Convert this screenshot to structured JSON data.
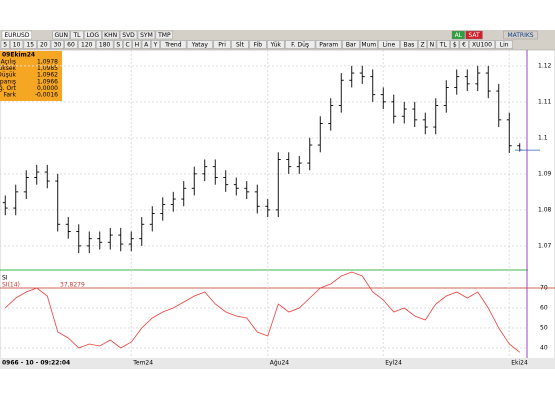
{
  "toolbar": {
    "symbol": "EURUSD",
    "row1": [
      "GUN",
      "TL",
      "LOG",
      "KHN",
      "SVD",
      "SYM",
      "TMP"
    ],
    "buy": "AL",
    "sell": "SAT",
    "brand": "MATRIKS",
    "row2": [
      "5",
      "10",
      "15",
      "20",
      "30",
      "60",
      "120",
      "180",
      "S",
      "C",
      "H",
      "A",
      "Y",
      "Trend",
      "Yatay",
      "Pri",
      "Slt",
      "Fib",
      "Yük",
      "F. Düş",
      "Param",
      "Bar",
      "Mum",
      "Line",
      "Bas",
      "Z",
      "N",
      "TL",
      "$",
      "€",
      "XU100",
      "Lin"
    ]
  },
  "info": {
    "date": "09Ekim24",
    "rows": [
      [
        "Açılış",
        "1,0978"
      ],
      [
        "Yüksek",
        "1,0985"
      ],
      [
        "Düşük",
        "1,0962"
      ],
      [
        "Kapanış",
        "1,0966"
      ],
      [
        "Ağ. Ort",
        "0,0000"
      ],
      [
        "Fark",
        "-0,0016"
      ]
    ]
  },
  "status": "0966 - 10 - 09:22:04",
  "chart_data": {
    "type": "ohlc",
    "ylim": [
      1.0633,
      1.1244
    ],
    "yticks": [
      1.12,
      1.11,
      1.1,
      1.09,
      1.08,
      1.07
    ],
    "grid": true,
    "color": "#000000",
    "categories": [
      null,
      null,
      null,
      null,
      null,
      null,
      null,
      null,
      null,
      null,
      null,
      null,
      "Tem24",
      null,
      null,
      null,
      null,
      null,
      null,
      null,
      null,
      null,
      null,
      null,
      null,
      "Ağu24",
      null,
      null,
      null,
      null,
      null,
      null,
      null,
      null,
      null,
      null,
      "Eyl24",
      null,
      null,
      null,
      null,
      null,
      null,
      null,
      null,
      null,
      null,
      null,
      "Eki24",
      null
    ],
    "ohlc": [
      [
        1.082,
        1.084,
        1.0785,
        1.0805
      ],
      [
        1.0805,
        1.087,
        1.0785,
        1.085
      ],
      [
        1.085,
        1.091,
        1.083,
        1.089
      ],
      [
        1.089,
        1.0925,
        1.087,
        1.0905
      ],
      [
        1.0905,
        1.0925,
        1.086,
        1.088
      ],
      [
        1.088,
        1.09,
        1.074,
        1.076
      ],
      [
        1.076,
        1.078,
        1.072,
        1.074
      ],
      [
        1.074,
        1.076,
        1.068,
        1.07
      ],
      [
        1.07,
        1.074,
        1.068,
        1.072
      ],
      [
        1.072,
        1.074,
        1.069,
        1.071
      ],
      [
        1.071,
        1.075,
        1.069,
        1.073
      ],
      [
        1.073,
        1.075,
        1.0685,
        1.0705
      ],
      [
        1.0705,
        1.074,
        1.0685,
        1.072
      ],
      [
        1.072,
        1.078,
        1.07,
        1.076
      ],
      [
        1.076,
        1.081,
        1.074,
        1.079
      ],
      [
        1.079,
        1.0835,
        1.077,
        1.0815
      ],
      [
        1.0815,
        1.085,
        1.0795,
        1.083
      ],
      [
        1.083,
        1.088,
        1.081,
        1.086
      ],
      [
        1.086,
        1.092,
        1.084,
        1.09
      ],
      [
        1.09,
        1.094,
        1.088,
        1.092
      ],
      [
        1.092,
        1.094,
        1.087,
        1.089
      ],
      [
        1.089,
        1.091,
        1.085,
        1.087
      ],
      [
        1.087,
        1.089,
        1.084,
        1.086
      ],
      [
        1.086,
        1.088,
        1.083,
        1.085
      ],
      [
        1.085,
        1.087,
        1.079,
        1.081
      ],
      [
        1.081,
        1.083,
        1.078,
        1.08
      ],
      [
        1.08,
        1.096,
        1.078,
        1.094
      ],
      [
        1.094,
        1.096,
        1.09,
        1.092
      ],
      [
        1.092,
        1.095,
        1.09,
        1.093
      ],
      [
        1.093,
        1.1,
        1.091,
        1.098
      ],
      [
        1.098,
        1.106,
        1.096,
        1.104
      ],
      [
        1.104,
        1.111,
        1.102,
        1.109
      ],
      [
        1.109,
        1.118,
        1.107,
        1.116
      ],
      [
        1.116,
        1.12,
        1.114,
        1.118
      ],
      [
        1.118,
        1.12,
        1.115,
        1.117
      ],
      [
        1.117,
        1.119,
        1.11,
        1.112
      ],
      [
        1.112,
        1.114,
        1.108,
        1.11
      ],
      [
        1.11,
        1.112,
        1.104,
        1.106
      ],
      [
        1.106,
        1.11,
        1.104,
        1.108
      ],
      [
        1.108,
        1.11,
        1.103,
        1.105
      ],
      [
        1.105,
        1.107,
        1.101,
        1.103
      ],
      [
        1.103,
        1.111,
        1.101,
        1.109
      ],
      [
        1.109,
        1.116,
        1.107,
        1.114
      ],
      [
        1.114,
        1.119,
        1.112,
        1.117
      ],
      [
        1.117,
        1.119,
        1.113,
        1.115
      ],
      [
        1.115,
        1.12,
        1.113,
        1.118
      ],
      [
        1.118,
        1.12,
        1.111,
        1.113
      ],
      [
        1.113,
        1.115,
        1.103,
        1.105
      ],
      [
        1.105,
        1.107,
        1.0958,
        1.0978
      ],
      [
        1.0978,
        1.0985,
        1.0962,
        1.0966
      ]
    ],
    "rsi": {
      "title": "SI",
      "name": "SI(14)",
      "value_label": "37,8279",
      "color": "#e8403a",
      "ylim": [
        36,
        78
      ],
      "yticks": [
        40,
        50,
        60,
        70
      ],
      "level": 70,
      "values": [
        60,
        65,
        68,
        70,
        66,
        48,
        45,
        40,
        42,
        41,
        44,
        40,
        43,
        50,
        55,
        58,
        60,
        63,
        66,
        68,
        62,
        58,
        56,
        55,
        48,
        46,
        62,
        58,
        60,
        65,
        70,
        72,
        76,
        78,
        76,
        68,
        64,
        58,
        60,
        56,
        54,
        62,
        66,
        68,
        65,
        68,
        60,
        50,
        42,
        37.8279
      ]
    }
  }
}
